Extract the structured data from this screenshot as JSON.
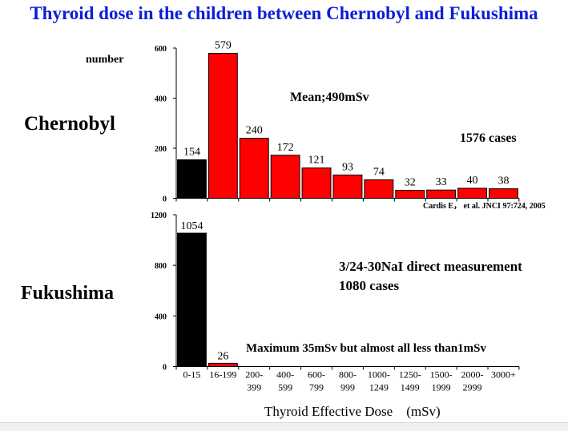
{
  "title": "Thyroid dose in the children between Chernobyl and Fukushima",
  "colors": {
    "title": "#0c1ed8",
    "first_bar": "#000000",
    "other_bars": "#ff0000"
  },
  "annotations": {
    "ylabel": "number",
    "chernobyl_mean": "Mean;490mSv",
    "chernobyl_cases": "1576 cases",
    "citation": "Cardis E， et al. JNCI 97:724, 2005",
    "fukushima_method": "3/24-30NaI direct measurement",
    "fukushima_cases": "1080 cases",
    "fukushima_max": "Maximum 35mSv but almost all less than1mSv"
  },
  "chart_data": [
    {
      "type": "bar",
      "panel_label": "Chernobyl",
      "ylabel": "number",
      "ylim": [
        0,
        600
      ],
      "yticks": [
        0,
        200,
        400,
        600
      ],
      "categories": [
        "0-15",
        "16-199",
        "200-399",
        "400-599",
        "600-799",
        "800-999",
        "1000-1249",
        "1250-1499",
        "1500-1999",
        "2000-2999",
        "3000+"
      ],
      "values": [
        154,
        579,
        240,
        172,
        121,
        93,
        74,
        32,
        33,
        40,
        38
      ],
      "data_labels": [
        "154",
        "579",
        "240",
        "172",
        "121",
        "93",
        "74",
        "32",
        "33",
        "40",
        "38"
      ],
      "grid": false
    },
    {
      "type": "bar",
      "panel_label": "Fukushima",
      "xlabel": "Thyroid Effective Dose　(mSv)",
      "ylim": [
        0,
        1200
      ],
      "yticks": [
        0,
        400,
        800,
        1200
      ],
      "categories": [
        "0-15",
        "16-199",
        "200-399",
        "400-599",
        "600-799",
        "800-999",
        "1000-1249",
        "1250-1499",
        "1500-1999",
        "2000-2999",
        "3000+"
      ],
      "tick_labels": [
        [
          "0-15"
        ],
        [
          "16-199"
        ],
        [
          "200-",
          "399"
        ],
        [
          "400-",
          "599"
        ],
        [
          "600-",
          "799"
        ],
        [
          "800-",
          "999"
        ],
        [
          "1000-",
          "1249"
        ],
        [
          "1250-",
          "1499"
        ],
        [
          "1500-",
          "1999"
        ],
        [
          "2000-",
          "2999"
        ],
        [
          "3000+"
        ]
      ],
      "values": [
        1054,
        26,
        0,
        0,
        0,
        0,
        0,
        0,
        0,
        0,
        0
      ],
      "data_labels": [
        "1054",
        "26",
        "",
        "",
        "",
        "",
        "",
        "",
        "",
        "",
        ""
      ],
      "grid": false
    }
  ]
}
